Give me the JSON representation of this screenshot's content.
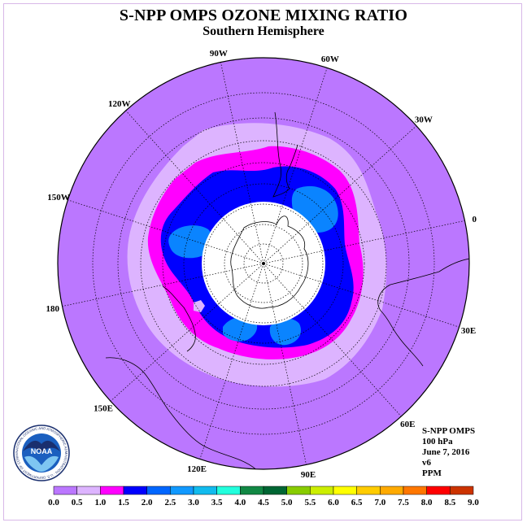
{
  "title": "S-NPP OMPS OZONE MIXING RATIO",
  "subtitle": "Southern Hemisphere",
  "lon_labels": [
    "90W",
    "60W",
    "30W",
    "0",
    "30E",
    "60E",
    "90E",
    "120E",
    "150E",
    "180",
    "150W",
    "120W"
  ],
  "info": {
    "instrument": "S-NPP OMPS",
    "level": "100 hPa",
    "date": "June 7, 2016",
    "version": "v6",
    "units": "PPM"
  },
  "logo": {
    "text": "NOAA",
    "ring_text": "NATIONAL OCEANIC AND ATMOSPHERIC ADMINISTRATION · U.S. DEPARTMENT OF COMMERCE"
  },
  "chart_data": {
    "type": "heatmap",
    "projection": "polar stereographic, south pole",
    "colorbar": {
      "ticks": [
        "0.0",
        "0.5",
        "1.0",
        "1.5",
        "2.0",
        "2.5",
        "3.0",
        "3.5",
        "4.0",
        "4.5",
        "5.0",
        "5.5",
        "6.0",
        "6.5",
        "7.0",
        "7.5",
        "8.0",
        "8.5",
        "9.0"
      ],
      "colors": [
        "#bb77ff",
        "#ddb4ff",
        "#ff00ff",
        "#0000ff",
        "#0066ff",
        "#1199ff",
        "#11bbee",
        "#22ffdd",
        "#118844",
        "#006633",
        "#88cc00",
        "#ccee00",
        "#ffff00",
        "#ffcc00",
        "#ffaa00",
        "#ff7700",
        "#ff0000",
        "#cc3300",
        "#885533"
      ]
    },
    "contours": [
      {
        "level_range": [
          0.5,
          1.0
        ],
        "color": "#ddb4ff"
      },
      {
        "level_range": [
          1.0,
          1.5
        ],
        "color": "#ff00ff"
      },
      {
        "level_range": [
          1.5,
          2.0
        ],
        "color": "#0000ff"
      },
      {
        "level_range": [
          2.0,
          2.5
        ],
        "color": "#0a84ff"
      }
    ],
    "background_level_range": [
      0.0,
      0.5
    ],
    "no_data_region": "polar night (center white disk)"
  }
}
